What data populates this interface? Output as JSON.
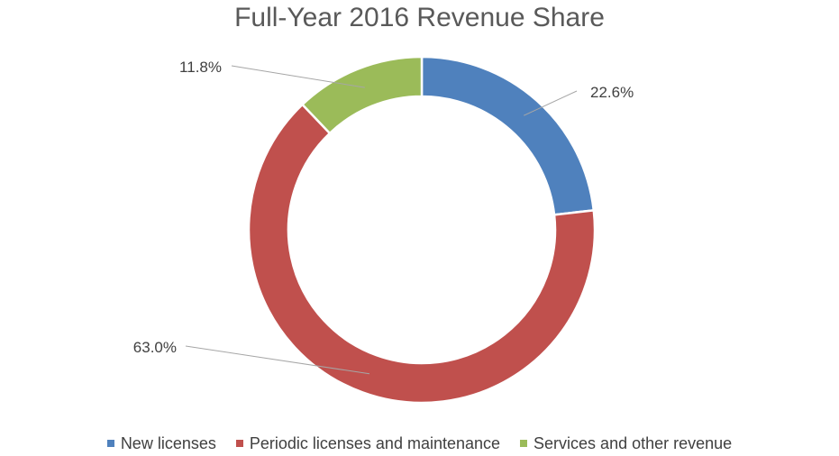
{
  "chart_data": {
    "type": "pie",
    "variant": "doughnut",
    "title": "Full-Year 2016 Revenue Share",
    "categories": [
      "New licenses",
      "Periodic licenses and maintenance",
      "Services and other revenue"
    ],
    "values": [
      22.6,
      63.0,
      11.8
    ],
    "labels": [
      "22.6%",
      "63.0%",
      "11.8%"
    ],
    "colors": [
      "#4F81BD",
      "#C0504D",
      "#9BBB59"
    ],
    "legend_position": "bottom"
  }
}
